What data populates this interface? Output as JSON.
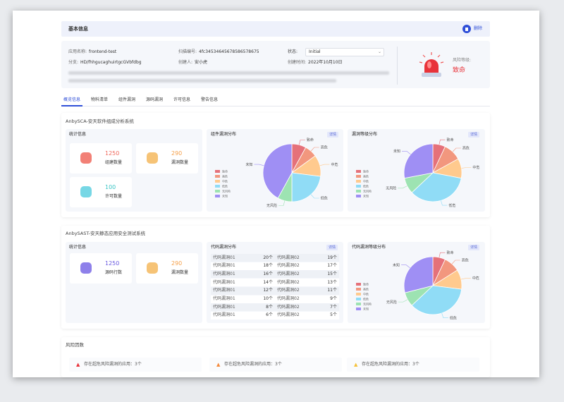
{
  "header": {
    "title": "基本信息",
    "action": "删除"
  },
  "info": {
    "fields": [
      {
        "label": "应用名称:",
        "value": "frontend-test"
      },
      {
        "label": "扫描编号:",
        "value": "4fc34534645678586578675"
      },
      {
        "label": "分支:",
        "value": "HD/fhhgucaghuirtgcGVbfdbg"
      },
      {
        "label": "创建人:",
        "value": "安小虎"
      },
      {
        "label": "创建时间:",
        "value": "2022年10月10日"
      }
    ],
    "status_label": "状态:",
    "status_value": "Initial",
    "risk_label": "风险等级:",
    "risk_value": "致命"
  },
  "tabs": [
    "概览信息",
    "物料清单",
    "组件漏洞",
    "源码漏洞",
    "许可信息",
    "警告信息"
  ],
  "sca": {
    "title": "AnbySCA-安天软件组成分析系统",
    "stats": {
      "title": "统计信息",
      "items": [
        {
          "value": 1250,
          "label": "组建数量"
        },
        {
          "value": 290,
          "label": "漏洞数量"
        },
        {
          "value": 100,
          "label": "许可数量"
        }
      ]
    },
    "charts": [
      {
        "type": "pie",
        "title": "组件漏洞分布",
        "link": "详情",
        "categories": [
          "致命",
          "高危",
          "中危",
          "低危",
          "无风险",
          "未知"
        ],
        "values": [
          8,
          7,
          12,
          23,
          8,
          42
        ],
        "colors": [
          "#e5717a",
          "#f2977e",
          "#ffca8e",
          "#90dcf6",
          "#9de3b2",
          "#9f8ff4"
        ]
      },
      {
        "type": "pie",
        "title": "漏洞等级分布",
        "link": "详情",
        "categories": [
          "致命",
          "高危",
          "中危",
          "低危",
          "无风险",
          "未知"
        ],
        "values": [
          7,
          10,
          11,
          35,
          9,
          28
        ],
        "colors": [
          "#e5717a",
          "#f2977e",
          "#ffca8e",
          "#90dcf6",
          "#9de3b2",
          "#9f8ff4"
        ]
      }
    ]
  },
  "sast": {
    "title": "AnbySAST-安天静态应用安全测试系统",
    "stats": {
      "title": "统计信息",
      "items": [
        {
          "value": 1250,
          "label": "源码行数"
        },
        {
          "value": 290,
          "label": "漏洞数量"
        }
      ]
    },
    "table": {
      "title": "代码漏洞分布",
      "link": "详情",
      "rows": [
        [
          "代码漏洞01",
          "20个",
          "代码漏洞02",
          "19个"
        ],
        [
          "代码漏洞01",
          "18个",
          "代码漏洞02",
          "17个"
        ],
        [
          "代码漏洞01",
          "16个",
          "代码漏洞02",
          "15个"
        ],
        [
          "代码漏洞01",
          "14个",
          "代码漏洞02",
          "13个"
        ],
        [
          "代码漏洞01",
          "12个",
          "代码漏洞02",
          "11个"
        ],
        [
          "代码漏洞01",
          "10个",
          "代码漏洞02",
          "9个"
        ],
        [
          "代码漏洞01",
          "8个",
          "代码漏洞02",
          "7个"
        ],
        [
          "代码漏洞01",
          "6个",
          "代码漏洞02",
          "5个"
        ]
      ]
    },
    "chart": {
      "type": "pie",
      "title": "代码漏洞等级分布",
      "link": "详情",
      "categories": [
        "致命",
        "高危",
        "中危",
        "低危",
        "无风险",
        "未知"
      ],
      "values": [
        7,
        9,
        11,
        36,
        8,
        29
      ],
      "colors": [
        "#e5717a",
        "#f2977e",
        "#ffca8e",
        "#90dcf6",
        "#9de3b2",
        "#9f8ff4"
      ]
    }
  },
  "risk": {
    "title": "风险因数",
    "alerts": [
      "存在超危风险漏洞的应用：3个",
      "存在超危风险漏洞的应用：3个",
      "存在超危风险漏洞的应用：3个"
    ]
  }
}
